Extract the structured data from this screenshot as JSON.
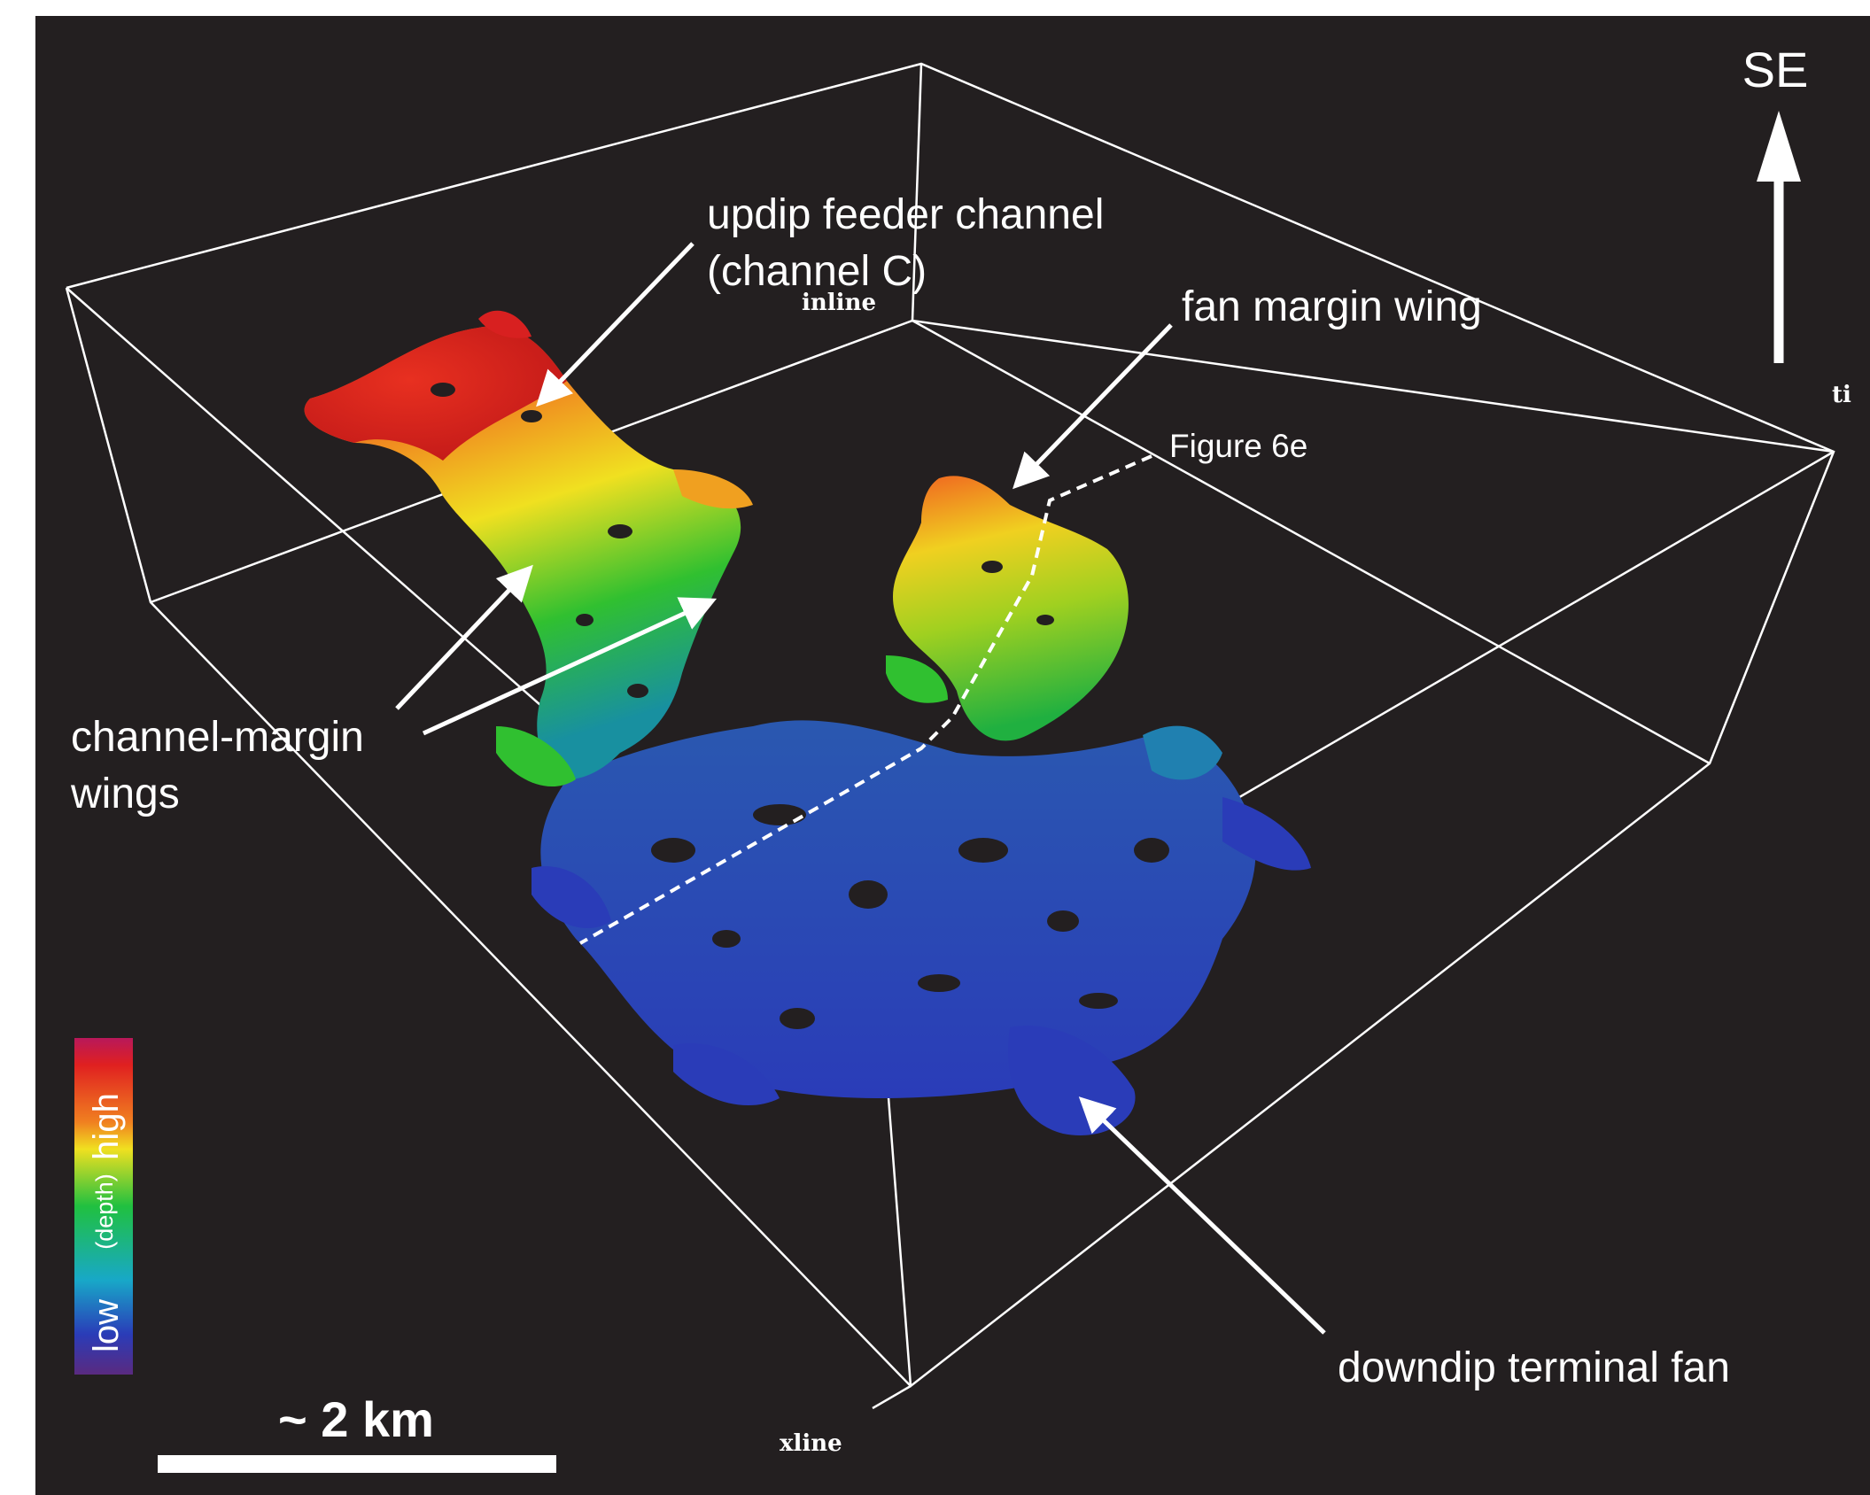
{
  "annotations": {
    "feeder_line1": "updip feeder channel",
    "feeder_line2": "(channel C)",
    "fan_margin_wing": "fan margin wing",
    "figure_ref": "Figure 6e",
    "channel_margin_line1": "channel-margin",
    "channel_margin_line2": "wings",
    "downdip_fan": "downdip terminal fan"
  },
  "axes": {
    "inline": "inline",
    "xline": "xline",
    "time": "ti"
  },
  "orientation": {
    "label": "SE"
  },
  "scale_bar": {
    "label": "~ 2 km"
  },
  "colorbar": {
    "high": "high",
    "middle": "(depth)",
    "low": "low"
  },
  "colors": {
    "background": "#231f20",
    "high": "#e02020",
    "mid_high": "#f0e020",
    "mid": "#20c040",
    "low": "#2a3cb8"
  }
}
